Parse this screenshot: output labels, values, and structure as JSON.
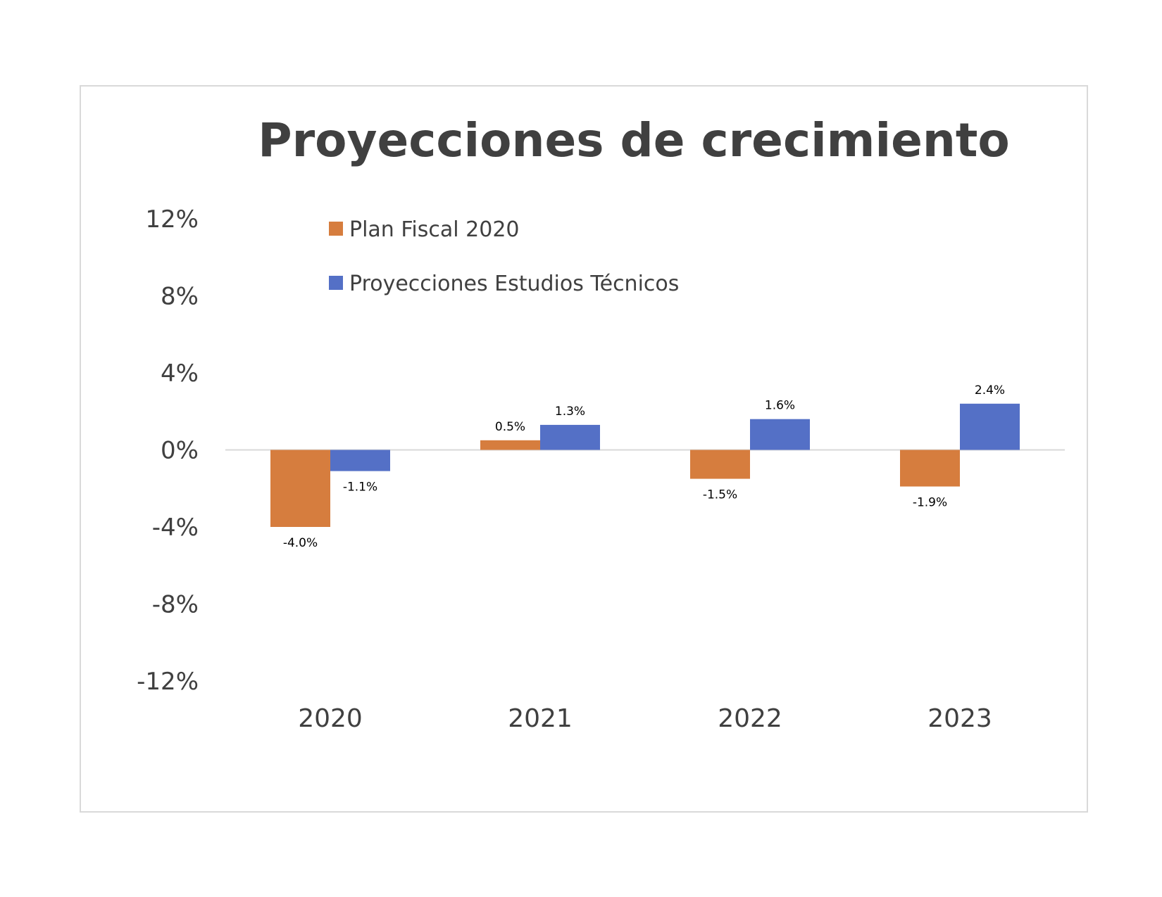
{
  "chart_data": {
    "type": "bar",
    "title": "Proyecciones de crecimiento",
    "xlabel": "",
    "ylabel": "",
    "categories": [
      "2020",
      "2021",
      "2022",
      "2023"
    ],
    "series": [
      {
        "name": "Plan Fiscal 2020",
        "color": "#D67D3E",
        "values": [
          -4.0,
          0.5,
          -1.5,
          -1.9
        ],
        "labels": [
          "-4.0%",
          "0.5%",
          "-1.5%",
          "-1.9%"
        ]
      },
      {
        "name": "Proyecciones Estudios Técnicos",
        "color": "#5470C6",
        "values": [
          -1.1,
          1.3,
          1.6,
          2.4
        ],
        "labels": [
          "-1.1%",
          "1.3%",
          "1.6%",
          "2.4%"
        ]
      }
    ],
    "ylim": [
      -12,
      12
    ],
    "yticks": [
      12,
      8,
      4,
      0,
      -4,
      -8,
      -12
    ],
    "ytick_labels": [
      "12%",
      "8%",
      "4%",
      "0%",
      "-4%",
      "-8%",
      "-12%"
    ],
    "grid": false,
    "legend_position": "top-left"
  }
}
